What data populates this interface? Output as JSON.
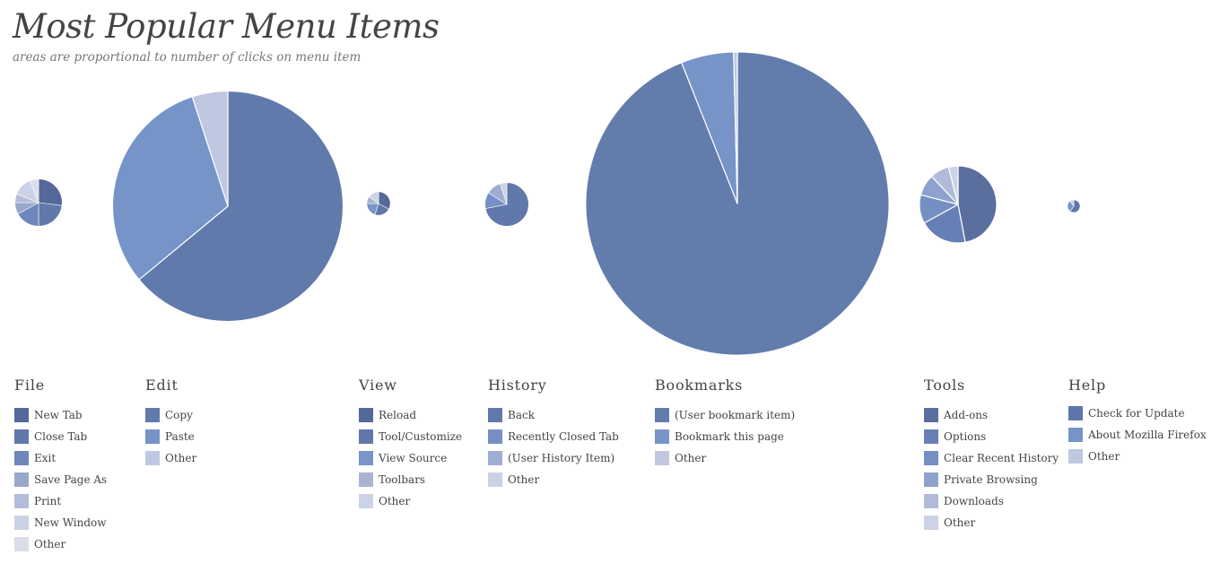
{
  "title": "Most Popular Menu Items",
  "subtitle": "areas are proportional to number of clicks on menu item",
  "chart_data": {
    "type": "pie",
    "title": "Most Popular Menu Items",
    "subtitle": "areas are proportional to number of clicks on menu item",
    "scale": "area proportional to total clicks per menu",
    "menus": [
      {
        "name": "File",
        "total": 2.8,
        "slices": [
          {
            "label": "New Tab",
            "value": 27
          },
          {
            "label": "Close Tab",
            "value": 23
          },
          {
            "label": "Exit",
            "value": 17
          },
          {
            "label": "Save Page As",
            "value": 8
          },
          {
            "label": "Print",
            "value": 6
          },
          {
            "label": "New Window",
            "value": 13
          },
          {
            "label": "Other",
            "value": 6
          }
        ]
      },
      {
        "name": "Edit",
        "total": 67,
        "slices": [
          {
            "label": "Copy",
            "value": 64
          },
          {
            "label": "Paste",
            "value": 31
          },
          {
            "label": "Other",
            "value": 5
          }
        ]
      },
      {
        "name": "View",
        "total": 0.7,
        "slices": [
          {
            "label": "Reload",
            "value": 33
          },
          {
            "label": "Tool/Customize",
            "value": 22
          },
          {
            "label": "View Source",
            "value": 20
          },
          {
            "label": "Toolbars",
            "value": 10
          },
          {
            "label": "Other",
            "value": 15
          }
        ]
      },
      {
        "name": "History",
        "total": 2.4,
        "slices": [
          {
            "label": "Back",
            "value": 72
          },
          {
            "label": "Recently Closed Tab",
            "value": 12
          },
          {
            "label": "(User History Item)",
            "value": 11
          },
          {
            "label": "Other",
            "value": 5
          }
        ]
      },
      {
        "name": "Bookmarks",
        "total": 116,
        "slices": [
          {
            "label": "(User bookmark item)",
            "value": 94
          },
          {
            "label": "Bookmark this page",
            "value": 5.6
          },
          {
            "label": "Other",
            "value": 0.4
          }
        ]
      },
      {
        "name": "Tools",
        "total": 7.5,
        "slices": [
          {
            "label": "Add-ons",
            "value": 47
          },
          {
            "label": "Options",
            "value": 20
          },
          {
            "label": "Clear Recent History",
            "value": 12
          },
          {
            "label": "Private Browsing",
            "value": 9
          },
          {
            "label": "Downloads",
            "value": 8
          },
          {
            "label": "Other",
            "value": 4
          }
        ]
      },
      {
        "name": "Help",
        "total": 0.2,
        "slices": [
          {
            "label": "Check for Update",
            "value": 60
          },
          {
            "label": "About Mozilla Firefox",
            "value": 30
          },
          {
            "label": "Other",
            "value": 10
          }
        ]
      }
    ]
  },
  "palettes": {
    "File": [
      "#54689a",
      "#6078aa",
      "#6d87ba",
      "#9aa7cc",
      "#b3bdda",
      "#cbd2e6",
      "#d9dee9"
    ],
    "Edit": [
      "#607aab",
      "#7694c8",
      "#c0c7e1"
    ],
    "View": [
      "#54689a",
      "#6078aa",
      "#7a95c9",
      "#a9b4d3",
      "#cdd3e6"
    ],
    "History": [
      "#6078aa",
      "#7690c6",
      "#9eadd2",
      "#ccd2e5"
    ],
    "Bookmarks": [
      "#627cac",
      "#7694c8",
      "#c0c7e1"
    ],
    "Tools": [
      "#5a6f9d",
      "#6680b5",
      "#748fc2",
      "#8fa2cd",
      "#b1bbd9",
      "#cdd3e6"
    ],
    "Help": [
      "#5d77aa",
      "#7694c8",
      "#c0c7e1"
    ]
  }
}
